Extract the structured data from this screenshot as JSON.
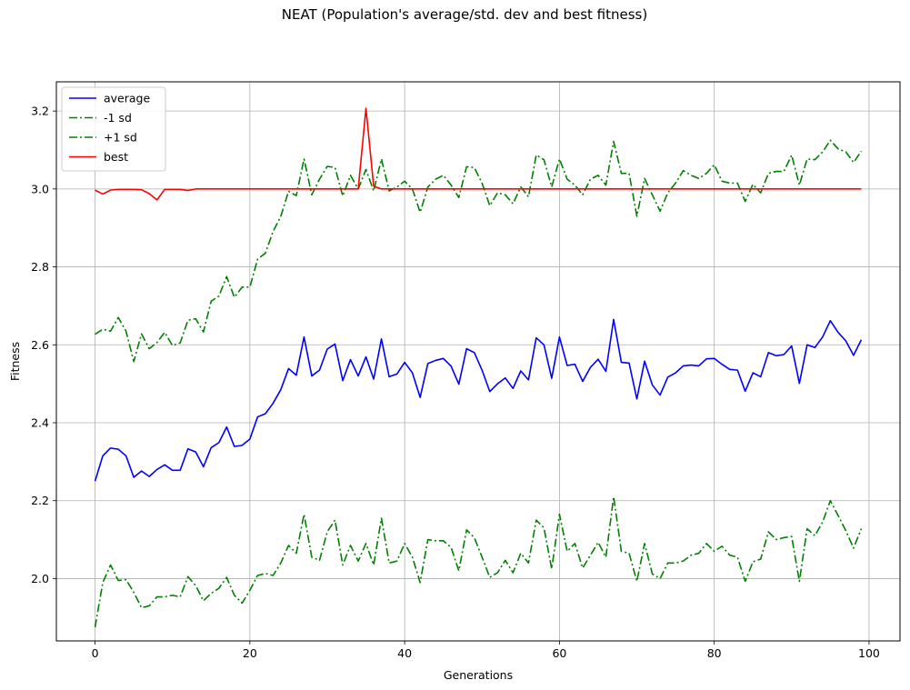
{
  "chart_data": {
    "type": "line",
    "title": "NEAT (Population's average/std. dev and best fitness)",
    "xlabel": "Generations",
    "ylabel": "Fitness",
    "xlim": [
      -5,
      104
    ],
    "ylim": [
      1.84,
      3.275
    ],
    "xticks": [
      0,
      20,
      40,
      60,
      80,
      100
    ],
    "yticks": [
      2.0,
      2.2,
      2.4,
      2.6,
      2.8,
      3.0,
      3.2
    ],
    "xtick_labels": [
      "0",
      "20",
      "40",
      "60",
      "80",
      "100"
    ],
    "ytick_labels": [
      "2.0",
      "2.2",
      "2.4",
      "2.6",
      "2.8",
      "3.0",
      "3.2"
    ],
    "grid": true,
    "legend_position": "top-left",
    "series": [
      {
        "name": "average",
        "color": "#0000ff",
        "style": "solid",
        "values": [
          2.25,
          2.315,
          2.335,
          2.332,
          2.315,
          2.26,
          2.276,
          2.262,
          2.28,
          2.292,
          2.278,
          2.278,
          2.333,
          2.325,
          2.287,
          2.336,
          2.349,
          2.389,
          2.339,
          2.342,
          2.358,
          2.415,
          2.423,
          2.45,
          2.485,
          2.539,
          2.522,
          2.62,
          2.52,
          2.535,
          2.589,
          2.602,
          2.508,
          2.562,
          2.52,
          2.569,
          2.512,
          2.615,
          2.518,
          2.525,
          2.555,
          2.528,
          2.465,
          2.552,
          2.56,
          2.565,
          2.545,
          2.499,
          2.59,
          2.58,
          2.535,
          2.48,
          2.5,
          2.515,
          2.488,
          2.533,
          2.51,
          2.618,
          2.6,
          2.514,
          2.62,
          2.547,
          2.55,
          2.506,
          2.542,
          2.563,
          2.532,
          2.665,
          2.555,
          2.553,
          2.461,
          2.558,
          2.497,
          2.471,
          2.517,
          2.528,
          2.546,
          2.548,
          2.546,
          2.564,
          2.565,
          2.55,
          2.537,
          2.535,
          2.481,
          2.528,
          2.518,
          2.58,
          2.572,
          2.575,
          2.597,
          2.501,
          2.6,
          2.593,
          2.62,
          2.662,
          2.632,
          2.61,
          2.573,
          2.613
        ]
      },
      {
        "name": "-1 sd",
        "color": "#008000",
        "style": "dashdot",
        "values": [
          1.875,
          1.99,
          2.035,
          1.995,
          1.997,
          1.965,
          1.925,
          1.93,
          1.953,
          1.953,
          1.957,
          1.953,
          2.005,
          1.982,
          1.943,
          1.962,
          1.975,
          2.003,
          1.957,
          1.937,
          1.97,
          2.008,
          2.013,
          2.008,
          2.04,
          2.085,
          2.065,
          2.165,
          2.055,
          2.047,
          2.12,
          2.15,
          2.035,
          2.085,
          2.045,
          2.09,
          2.035,
          2.155,
          2.04,
          2.045,
          2.09,
          2.055,
          1.99,
          2.1,
          2.097,
          2.097,
          2.08,
          2.02,
          2.125,
          2.105,
          2.055,
          2.003,
          2.015,
          2.047,
          2.015,
          2.065,
          2.04,
          2.15,
          2.13,
          2.025,
          2.165,
          2.07,
          2.09,
          2.027,
          2.06,
          2.093,
          2.055,
          2.21,
          2.07,
          2.065,
          1.993,
          2.09,
          2.012,
          2.0,
          2.04,
          2.04,
          2.045,
          2.06,
          2.065,
          2.09,
          2.07,
          2.083,
          2.06,
          2.055,
          1.993,
          2.043,
          2.05,
          2.12,
          2.1,
          2.105,
          2.108,
          1.993,
          2.128,
          2.11,
          2.145,
          2.2,
          2.162,
          2.123,
          2.078,
          2.128
        ]
      },
      {
        "name": "+1 sd",
        "color": "#008000",
        "style": "dashdot",
        "values": [
          2.627,
          2.64,
          2.635,
          2.67,
          2.635,
          2.557,
          2.628,
          2.59,
          2.606,
          2.632,
          2.598,
          2.605,
          2.663,
          2.667,
          2.633,
          2.712,
          2.725,
          2.775,
          2.722,
          2.748,
          2.748,
          2.82,
          2.835,
          2.891,
          2.93,
          2.994,
          2.983,
          3.077,
          2.985,
          3.025,
          3.058,
          3.055,
          2.982,
          3.035,
          3.0,
          3.05,
          2.995,
          3.077,
          2.995,
          3.005,
          3.02,
          3.0,
          2.94,
          3.005,
          3.025,
          3.035,
          3.01,
          2.978,
          3.057,
          3.055,
          3.015,
          2.957,
          2.99,
          2.985,
          2.962,
          3.005,
          2.98,
          3.087,
          3.075,
          3.005,
          3.077,
          3.025,
          3.01,
          2.985,
          3.025,
          3.035,
          3.01,
          3.122,
          3.04,
          3.04,
          2.93,
          3.027,
          2.985,
          2.943,
          2.99,
          3.015,
          3.047,
          3.035,
          3.027,
          3.04,
          3.062,
          3.02,
          3.015,
          3.015,
          2.968,
          3.012,
          2.99,
          3.04,
          3.045,
          3.045,
          3.087,
          3.01,
          3.077,
          3.075,
          3.095,
          3.125,
          3.103,
          3.095,
          3.068,
          3.097
        ]
      },
      {
        "name": "best",
        "color": "#ff0000",
        "style": "solid",
        "values": [
          2.997,
          2.987,
          2.997,
          2.999,
          2.999,
          2.999,
          2.998,
          2.988,
          2.972,
          2.999,
          2.999,
          2.999,
          2.996,
          3.0,
          3.0,
          3.0,
          3.0,
          3.0,
          3.0,
          3.0,
          3.0,
          3.0,
          3.0,
          3.0,
          3.0,
          3.0,
          3.0,
          3.0,
          3.0,
          3.0,
          3.0,
          3.0,
          3.0,
          3.0,
          3.0,
          3.207,
          3.007,
          3.0,
          3.0,
          3.0,
          3.0,
          3.0,
          3.0,
          3.0,
          3.0,
          3.0,
          3.0,
          3.0,
          3.0,
          3.0,
          3.0,
          3.0,
          3.0,
          3.0,
          3.0,
          3.0,
          3.0,
          3.0,
          3.0,
          3.0,
          3.0,
          3.0,
          3.0,
          3.0,
          3.0,
          3.0,
          3.0,
          3.0,
          3.0,
          3.0,
          3.0,
          3.0,
          3.0,
          3.0,
          3.0,
          3.0,
          3.0,
          3.0,
          3.0,
          3.0,
          3.0,
          3.0,
          3.0,
          3.0,
          3.0,
          3.0,
          3.0,
          3.0,
          3.0,
          3.0,
          3.0,
          3.0,
          3.0,
          3.0,
          3.0,
          3.0,
          3.0,
          3.0,
          3.0,
          3.0
        ]
      }
    ]
  }
}
